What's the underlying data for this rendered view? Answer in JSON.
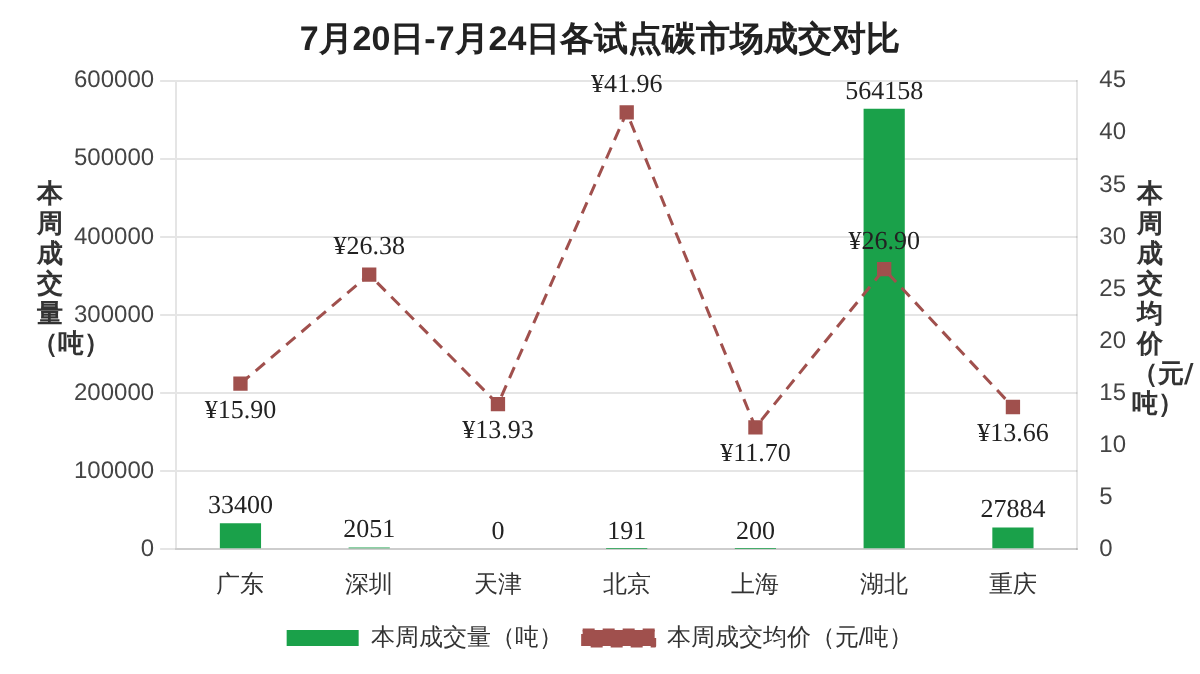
{
  "chart_data": {
    "type": "bar",
    "title": "7月20日-7月24日各试点碳市场成交对比",
    "ylabel": "本周成交量（吨）",
    "y2label": "本周成交均价（元/吨）",
    "categories": [
      "广东",
      "深圳",
      "天津",
      "北京",
      "上海",
      "湖北",
      "重庆"
    ],
    "series": [
      {
        "name": "本周成交量（吨）",
        "color": "#1aa14a",
        "values": [
          33400,
          2051,
          0,
          191,
          200,
          564158,
          27884
        ],
        "value_labels": [
          "33400",
          "2051",
          "0",
          "191",
          "200",
          "564158",
          "27884"
        ]
      },
      {
        "name": "本周成交均价（元/吨）",
        "type": "line",
        "axis": "y2",
        "color": "#a0504d",
        "values": [
          15.9,
          26.38,
          13.93,
          41.96,
          11.7,
          26.9,
          13.66
        ],
        "value_labels": [
          "¥15.90",
          "¥26.38",
          "¥13.93",
          "¥41.96",
          "¥11.70",
          "¥26.90",
          "¥13.66"
        ],
        "marker": "square",
        "line_style": "dashed"
      }
    ],
    "ylim": [
      0,
      600000
    ],
    "yticks": [
      0,
      100000,
      200000,
      300000,
      400000,
      500000,
      600000
    ],
    "y2lim": [
      0,
      45
    ],
    "y2ticks": [
      0,
      5,
      10,
      15,
      20,
      25,
      30,
      35,
      40,
      45
    ],
    "grid": "y",
    "legend": "bottom"
  }
}
